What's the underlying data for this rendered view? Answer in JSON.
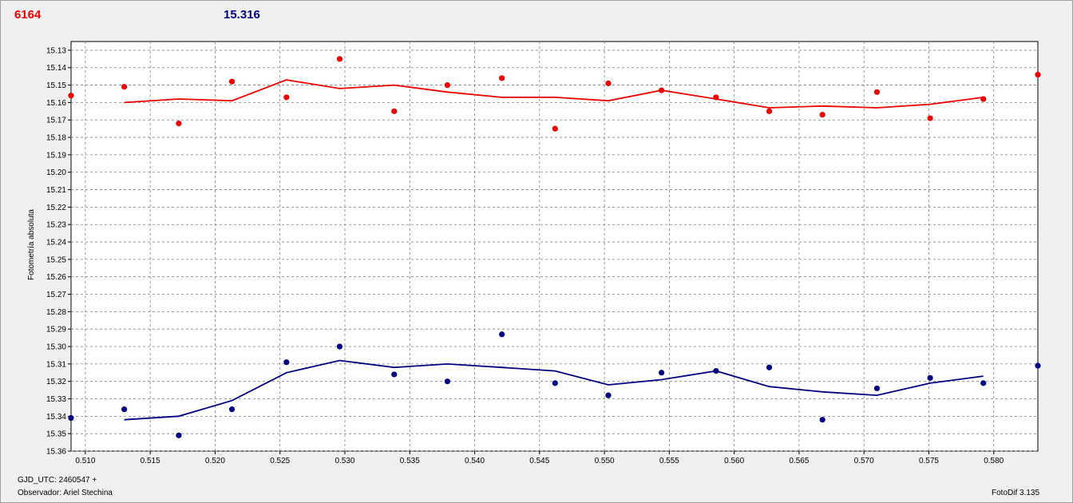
{
  "header": {
    "left_value": "6164",
    "right_value": "15.316"
  },
  "footer": {
    "gjd": "GJD_UTC: 2460547 +",
    "observer": "Observador: Ariel Stechina",
    "version": "FotoDif 3.135"
  },
  "colors": {
    "red": "#ee0000",
    "blue": "#000080",
    "background": "#f0f0f0",
    "plot_bg": "#ffffff",
    "grid": "#808080"
  },
  "chart_data": {
    "type": "scatter",
    "ylabel": "Fotometría absoluta",
    "xlabel": "",
    "title": "",
    "xlim": [
      0.5089,
      0.5834
    ],
    "ylim": [
      15.125,
      15.36
    ],
    "y_inverted": true,
    "grid": true,
    "x_ticks": [
      "0.510",
      "0.515",
      "0.520",
      "0.525",
      "0.530",
      "0.535",
      "0.540",
      "0.545",
      "0.550",
      "0.555",
      "0.560",
      "0.565",
      "0.570",
      "0.575",
      "0.580"
    ],
    "y_ticks": [
      "15.13",
      "15.14",
      "15.15",
      "15.16",
      "15.17",
      "15.18",
      "15.19",
      "15.20",
      "15.21",
      "15.22",
      "15.23",
      "15.24",
      "15.25",
      "15.26",
      "15.27",
      "15.28",
      "15.29",
      "15.30",
      "15.31",
      "15.32",
      "15.33",
      "15.34",
      "15.35",
      "15.36"
    ],
    "series": [
      {
        "color": "#ee0000",
        "points": [
          [
            0.5089,
            15.156
          ],
          [
            0.513,
            15.151
          ],
          [
            0.5172,
            15.172
          ],
          [
            0.5213,
            15.148
          ],
          [
            0.5255,
            15.157
          ],
          [
            0.5296,
            15.135
          ],
          [
            0.5338,
            15.165
          ],
          [
            0.5379,
            15.15
          ],
          [
            0.5421,
            15.146
          ],
          [
            0.5462,
            15.175
          ],
          [
            0.5503,
            15.149
          ],
          [
            0.5544,
            15.153
          ],
          [
            0.5586,
            15.157
          ],
          [
            0.5627,
            15.165
          ],
          [
            0.5668,
            15.167
          ],
          [
            0.571,
            15.154
          ],
          [
            0.5751,
            15.169
          ],
          [
            0.5792,
            15.158
          ],
          [
            0.5834,
            15.144
          ]
        ],
        "line": [
          [
            0.513,
            15.16
          ],
          [
            0.5172,
            15.158
          ],
          [
            0.5213,
            15.159
          ],
          [
            0.5255,
            15.147
          ],
          [
            0.5296,
            15.152
          ],
          [
            0.5338,
            15.15
          ],
          [
            0.5379,
            15.154
          ],
          [
            0.5421,
            15.157
          ],
          [
            0.5462,
            15.157
          ],
          [
            0.5503,
            15.159
          ],
          [
            0.5544,
            15.153
          ],
          [
            0.5586,
            15.158
          ],
          [
            0.5627,
            15.163
          ],
          [
            0.5668,
            15.162
          ],
          [
            0.571,
            15.163
          ],
          [
            0.5751,
            15.161
          ],
          [
            0.5792,
            15.157
          ]
        ]
      },
      {
        "color": "#000080",
        "points": [
          [
            0.5089,
            15.341
          ],
          [
            0.513,
            15.336
          ],
          [
            0.5172,
            15.351
          ],
          [
            0.5213,
            15.336
          ],
          [
            0.5255,
            15.309
          ],
          [
            0.5296,
            15.3
          ],
          [
            0.5338,
            15.316
          ],
          [
            0.5379,
            15.32
          ],
          [
            0.5421,
            15.293
          ],
          [
            0.5462,
            15.321
          ],
          [
            0.5503,
            15.328
          ],
          [
            0.5544,
            15.315
          ],
          [
            0.5586,
            15.314
          ],
          [
            0.5627,
            15.312
          ],
          [
            0.5668,
            15.342
          ],
          [
            0.571,
            15.324
          ],
          [
            0.5751,
            15.318
          ],
          [
            0.5792,
            15.321
          ],
          [
            0.5834,
            15.311
          ]
        ],
        "line": [
          [
            0.513,
            15.342
          ],
          [
            0.5172,
            15.34
          ],
          [
            0.5213,
            15.331
          ],
          [
            0.5255,
            15.315
          ],
          [
            0.5296,
            15.308
          ],
          [
            0.5338,
            15.312
          ],
          [
            0.5379,
            15.31
          ],
          [
            0.5421,
            15.312
          ],
          [
            0.5462,
            15.314
          ],
          [
            0.5503,
            15.322
          ],
          [
            0.5544,
            15.319
          ],
          [
            0.5586,
            15.314
          ],
          [
            0.5627,
            15.323
          ],
          [
            0.5668,
            15.326
          ],
          [
            0.571,
            15.328
          ],
          [
            0.5751,
            15.321
          ],
          [
            0.5792,
            15.317
          ]
        ]
      }
    ]
  }
}
